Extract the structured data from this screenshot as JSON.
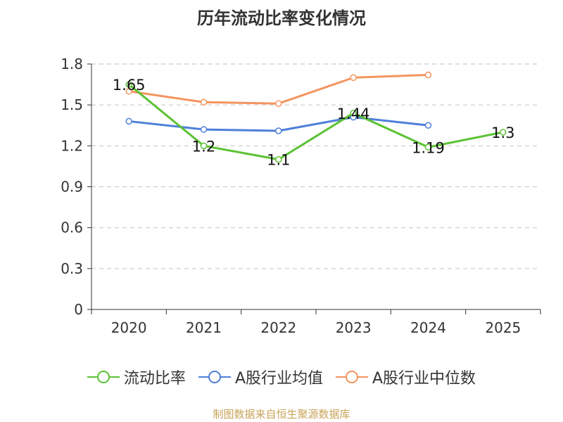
{
  "chart_data": {
    "type": "line",
    "title": "历年流动比率变化情况",
    "categories": [
      "2020",
      "2021",
      "2022",
      "2023",
      "2024",
      "2025"
    ],
    "yticks": [
      "0",
      "0.3",
      "0.6",
      "0.9",
      "1.2",
      "1.5",
      "1.8"
    ],
    "ylim": [
      0,
      1.8
    ],
    "xlabel": "",
    "ylabel": "",
    "grid": true,
    "legend_position": "bottom",
    "series": [
      {
        "name": "流动比率",
        "color": "#5cc234",
        "values": [
          1.65,
          1.2,
          1.1,
          1.44,
          1.19,
          1.3
        ],
        "labels": [
          "1.65",
          "1.2",
          "1.1",
          "1.44",
          "1.19",
          "1.3"
        ]
      },
      {
        "name": "A股行业均值",
        "color": "#4f7fd9",
        "values": [
          1.38,
          1.32,
          1.31,
          1.41,
          1.35,
          null
        ]
      },
      {
        "name": "A股行业中位数",
        "color": "#f4945e",
        "values": [
          1.6,
          1.52,
          1.51,
          1.7,
          1.72,
          null
        ]
      }
    ]
  },
  "source_text": "制图数据来自恒生聚源数据库"
}
